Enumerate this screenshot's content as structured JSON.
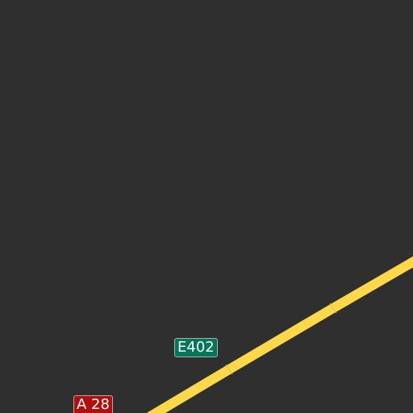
{
  "map": {
    "background_color": "#2f2f2f",
    "road_color": "#fdd84a",
    "road_segment_divider_color": "#e8c23a",
    "roads": [
      {
        "name": "motorway",
        "type": "motorway"
      }
    ],
    "shields": [
      {
        "label": "E402",
        "type": "european-route",
        "color": "#00775b"
      },
      {
        "label": "A 28",
        "type": "motorway-number",
        "color": "#b30e0e"
      }
    ]
  }
}
